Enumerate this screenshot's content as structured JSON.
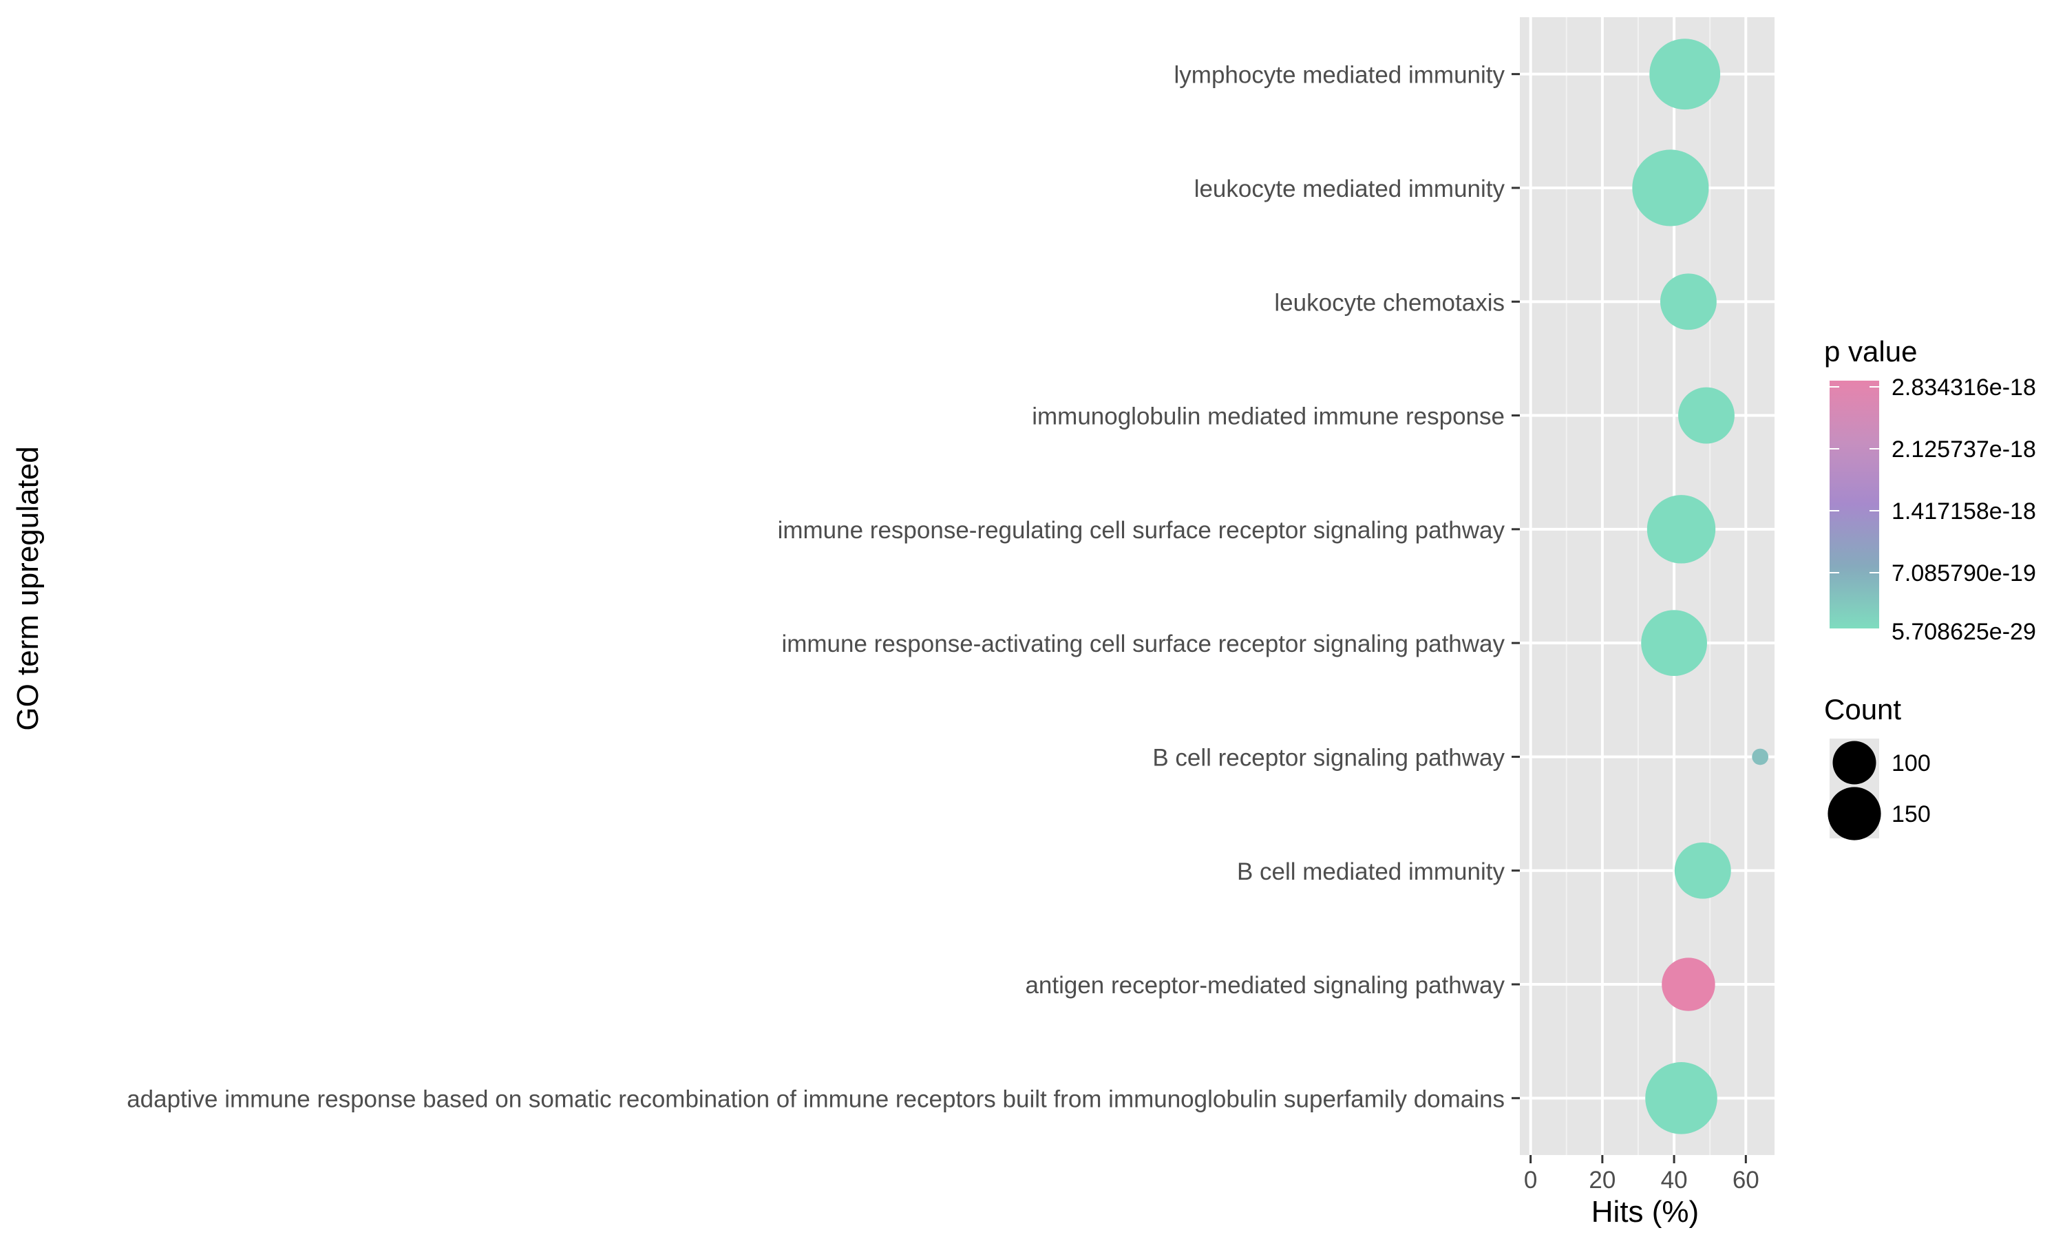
{
  "chart_data": {
    "type": "scatter",
    "xlabel": "Hits (%)",
    "ylabel": "GO term upregulated",
    "xlim": [
      -3,
      68
    ],
    "x_ticks": [
      0,
      20,
      40,
      60
    ],
    "grid": true,
    "legend_placement": "right",
    "color_legend": {
      "title": "p value",
      "labels": [
        "2.834316e-18",
        "2.125737e-18",
        "1.417158e-18",
        "7.085790e-19",
        "5.708625e-29"
      ],
      "gradient": [
        "#e684ac",
        "#c68fbf",
        "#a68acc",
        "#86aabd",
        "#7fdcbf"
      ]
    },
    "size_legend": {
      "title": "Count",
      "labels": [
        "100",
        "150"
      ],
      "values": [
        100,
        150
      ]
    },
    "categories": [
      "lymphocyte mediated immunity",
      "leukocyte mediated immunity",
      "leukocyte chemotaxis",
      "immunoglobulin mediated immune response",
      "immune response-regulating cell surface receptor signaling pathway",
      "immune response-activating cell surface receptor signaling pathway",
      "B cell receptor signaling pathway",
      "B cell mediated immunity",
      "antigen receptor-mediated signaling pathway",
      "adaptive immune response based on somatic recombination of immune receptors built from immunoglobulin superfamily domains"
    ],
    "points": [
      {
        "term": "lymphocyte mediated immunity",
        "hits": 43,
        "count": 150,
        "color": "#7fdcbf"
      },
      {
        "term": "leukocyte mediated immunity",
        "hits": 39,
        "count": 175,
        "color": "#7fdcbf"
      },
      {
        "term": "leukocyte chemotaxis",
        "hits": 44,
        "count": 95,
        "color": "#7fdcbf"
      },
      {
        "term": "immunoglobulin mediated immune response",
        "hits": 49,
        "count": 95,
        "color": "#7fdcbf"
      },
      {
        "term": "immune response-regulating cell surface receptor signaling pathway",
        "hits": 42,
        "count": 140,
        "color": "#7fdcbf"
      },
      {
        "term": "immune response-activating cell surface receptor signaling pathway",
        "hits": 40,
        "count": 130,
        "color": "#7fdcbf"
      },
      {
        "term": "B cell receptor signaling pathway",
        "hits": 64,
        "count": 8,
        "color": "#86bfbe"
      },
      {
        "term": "B cell mediated immunity",
        "hits": 48,
        "count": 95,
        "color": "#7fdcbf"
      },
      {
        "term": "antigen receptor-mediated signaling pathway",
        "hits": 44,
        "count": 85,
        "color": "#e684ac"
      },
      {
        "term": "adaptive immune response based on somatic recombination of immune receptors built from immunoglobulin superfamily domains",
        "hits": 42,
        "count": 155,
        "color": "#7fdcbf"
      }
    ]
  }
}
